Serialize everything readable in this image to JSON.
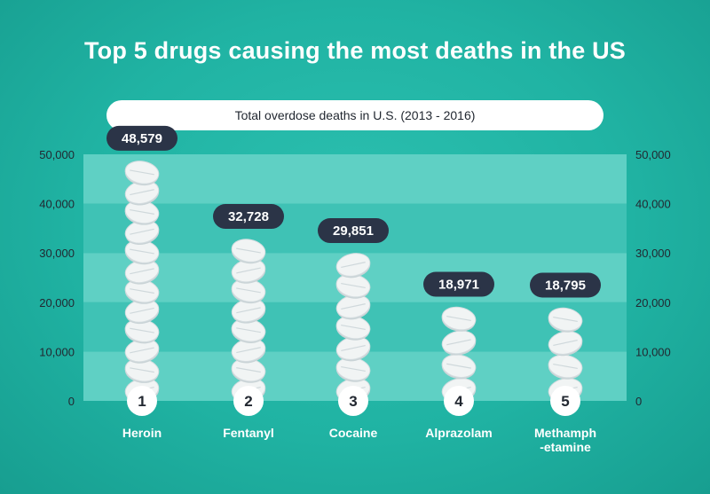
{
  "title": "Top 5 drugs causing the most deaths in the US",
  "subtitle": "Total overdose deaths in U.S. (2013 - 2016)",
  "colors": {
    "background": "#20b3a3",
    "plot_band_light": "#5fd0c4",
    "plot_band_dark": "#3fc2b5",
    "pill": "#f1f4f4",
    "pill_edge": "#c9d3d6",
    "value_badge": "#2b3447",
    "rank_circle": "#ffffff",
    "text_white": "#ffffff",
    "text_dark": "#222831"
  },
  "chart_data": {
    "type": "bar",
    "categories": [
      "Heroin",
      "Fentanyl",
      "Cocaine",
      "Alprazolam",
      "Methamph\n-etamine"
    ],
    "ranks": [
      "1",
      "2",
      "3",
      "4",
      "5"
    ],
    "values": [
      48579,
      32728,
      29851,
      18971,
      18795
    ],
    "value_labels": [
      "48,579",
      "32,728",
      "29,851",
      "18,971",
      "18,795"
    ],
    "ylim": [
      0,
      50000
    ],
    "yticks": [
      0,
      10000,
      20000,
      30000,
      40000,
      50000
    ],
    "ytick_labels": [
      "0",
      "10,000",
      "20,000",
      "30,000",
      "40,000",
      "50,000"
    ],
    "title": "Top 5 drugs causing the most deaths in the US",
    "subtitle": "Total overdose deaths in U.S. (2013 - 2016)",
    "grid": true,
    "axes": "both sides"
  }
}
